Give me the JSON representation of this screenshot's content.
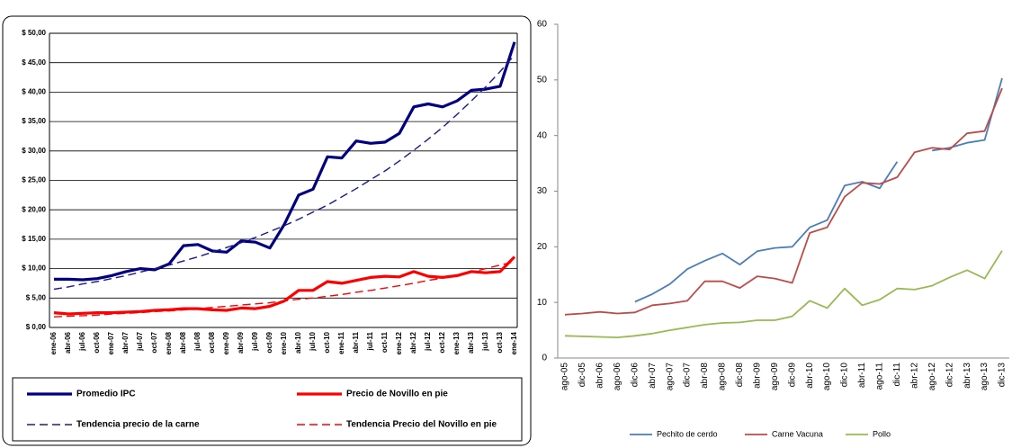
{
  "chart_data": [
    {
      "type": "line",
      "categories": [
        "ene-06",
        "abr-06",
        "jul-06",
        "oct-06",
        "ene-07",
        "abr-07",
        "jul-07",
        "oct-07",
        "ene-08",
        "abr-08",
        "jul-08",
        "oct-08",
        "ene-09",
        "abr-09",
        "jul-09",
        "oct-09",
        "ene-10",
        "abr-10",
        "jul-10",
        "oct-10",
        "ene-11",
        "abr-11",
        "jul-11",
        "oct-11",
        "ene-12",
        "abr-12",
        "jul-12",
        "oct-12",
        "ene-13",
        "abr-13",
        "jul-13",
        "oct-13",
        "ene-14"
      ],
      "series": [
        {
          "name": "Promedio IPC",
          "color": "#000080",
          "dashed": false,
          "values": [
            8.2,
            8.2,
            8.1,
            8.3,
            8.8,
            9.5,
            10.0,
            9.8,
            10.8,
            13.9,
            14.1,
            13.0,
            12.8,
            14.7,
            14.5,
            13.5,
            17.5,
            22.5,
            23.5,
            29.0,
            28.8,
            31.7,
            31.3,
            31.5,
            33.0,
            37.5,
            38.0,
            37.5,
            38.5,
            40.3,
            40.5,
            41.0,
            48.5
          ]
        },
        {
          "name": "Precio de Novillo en pie",
          "color": "#ff0000",
          "dashed": false,
          "values": [
            2.5,
            2.3,
            2.4,
            2.5,
            2.5,
            2.6,
            2.7,
            2.9,
            3.0,
            3.2,
            3.2,
            3.0,
            2.9,
            3.3,
            3.2,
            3.6,
            4.5,
            6.3,
            6.3,
            7.8,
            7.5,
            8.0,
            8.5,
            8.7,
            8.6,
            9.5,
            8.7,
            8.5,
            8.8,
            9.5,
            9.3,
            9.5,
            12.0
          ]
        },
        {
          "name": "Tendencia precio de la carne",
          "color": "#1a1a8c",
          "dashed": true,
          "values": [
            6.5,
            6.9,
            7.4,
            7.8,
            8.3,
            8.8,
            9.4,
            10.0,
            10.6,
            11.3,
            12.0,
            12.8,
            13.6,
            14.4,
            15.3,
            16.3,
            17.3,
            18.4,
            19.6,
            20.8,
            22.2,
            23.6,
            25.1,
            26.6,
            28.3,
            30.1,
            32.0,
            34.0,
            36.2,
            38.5,
            40.9,
            43.5,
            46.3
          ]
        },
        {
          "name": "Tendencia Precio del Novillo en pie",
          "color": "#ff0000",
          "dashed": true,
          "values": [
            1.8,
            1.9,
            2.0,
            2.1,
            2.3,
            2.4,
            2.5,
            2.7,
            2.8,
            3.0,
            3.2,
            3.4,
            3.6,
            3.8,
            4.0,
            4.2,
            4.5,
            4.8,
            5.0,
            5.3,
            5.6,
            6.0,
            6.3,
            6.7,
            7.1,
            7.5,
            8.0,
            8.4,
            8.9,
            9.4,
            10.0,
            10.6,
            11.2
          ]
        }
      ],
      "ylim": [
        0,
        50
      ],
      "yticks": [
        {
          "value": 0,
          "label": "$ 0,00"
        },
        {
          "value": 5,
          "label": "$ 5,00"
        },
        {
          "value": 10,
          "label": "$ 10,00"
        },
        {
          "value": 15,
          "label": "$ 15,00"
        },
        {
          "value": 20,
          "label": "$ 20,00"
        },
        {
          "value": 25,
          "label": "$ 25,00"
        },
        {
          "value": 30,
          "label": "$ 30,00"
        },
        {
          "value": 35,
          "label": "$ 35,00"
        },
        {
          "value": 40,
          "label": "$ 40,00"
        },
        {
          "value": 45,
          "label": "$ 45,00"
        },
        {
          "value": 50,
          "label": "$ 50,00"
        }
      ],
      "grid": true,
      "legend": "bottom"
    },
    {
      "type": "line",
      "categories": [
        "ago-05",
        "dic-05",
        "abr-06",
        "ago-06",
        "dic-06",
        "abr-07",
        "ago-07",
        "dic-07",
        "abr-08",
        "ago-08",
        "dic-08",
        "abr-09",
        "ago-09",
        "dic-09",
        "abr-10",
        "ago-10",
        "dic-10",
        "abr-11",
        "ago-11",
        "dic-11",
        "abr-12",
        "ago-12",
        "dic-12",
        "abr-13",
        "ago-13",
        "dic-13"
      ],
      "series": [
        {
          "name": "Pechito de cerdo",
          "color": "#4a7ebb",
          "values": [
            null,
            null,
            null,
            null,
            10.1,
            11.5,
            13.3,
            16.0,
            17.5,
            18.8,
            16.8,
            19.2,
            19.8,
            20.0,
            23.5,
            24.8,
            31.0,
            31.7,
            30.5,
            35.3,
            null,
            37.3,
            37.8,
            38.7,
            39.2,
            50.3
          ]
        },
        {
          "name": "Carne Vacuna",
          "color": "#be4b48",
          "values": [
            7.8,
            8.0,
            8.3,
            8.0,
            8.2,
            9.5,
            9.8,
            10.3,
            13.8,
            13.8,
            12.6,
            14.7,
            14.3,
            13.5,
            22.5,
            23.5,
            29.0,
            31.5,
            31.3,
            32.5,
            37.0,
            37.8,
            37.5,
            40.4,
            40.8,
            48.5
          ]
        },
        {
          "name": "Pollo",
          "color": "#98b954",
          "values": [
            4.0,
            3.9,
            3.8,
            3.7,
            4.0,
            4.4,
            5.0,
            5.5,
            6.0,
            6.3,
            6.4,
            6.8,
            6.8,
            7.5,
            10.3,
            9.0,
            12.5,
            9.5,
            10.5,
            12.5,
            12.3,
            13.0,
            14.5,
            15.8,
            14.3,
            19.3
          ]
        }
      ],
      "ylim": [
        0,
        60
      ],
      "yticks": [
        0,
        10,
        20,
        30,
        40,
        50,
        60
      ],
      "grid": false,
      "legend": "bottom"
    }
  ]
}
